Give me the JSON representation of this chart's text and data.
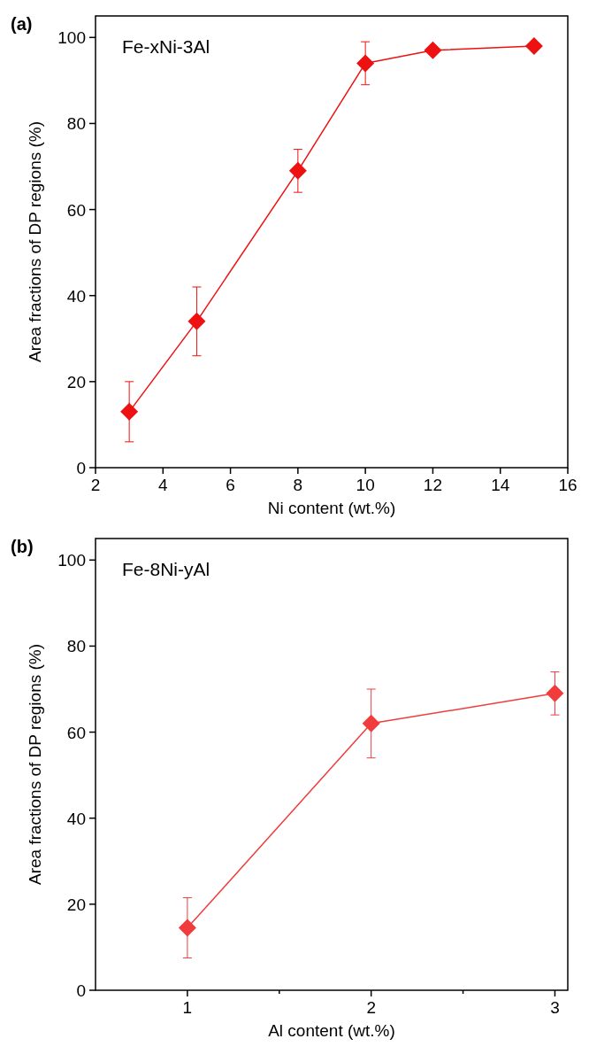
{
  "chart_data": [
    {
      "type": "line",
      "xlabel": "Ni content (wt.%)",
      "ylabel": "Area fractions of DP regions (%)",
      "annotations": [
        "(a)",
        "Fe-xNi-3Al"
      ],
      "x": [
        3,
        5,
        8,
        10,
        12,
        15
      ],
      "series": [
        {
          "color": "#ee1111",
          "values": [
            13,
            34,
            69,
            94,
            97,
            98
          ],
          "errors": [
            [
              6,
              20
            ],
            [
              26,
              42
            ],
            [
              64,
              74
            ],
            [
              89,
              99
            ],
            null,
            null
          ]
        }
      ],
      "xlim": [
        2,
        16
      ],
      "xticks": [
        2,
        4,
        6,
        8,
        10,
        12,
        14,
        16
      ],
      "ylim": [
        0,
        105
      ],
      "yticks": [
        0,
        20,
        40,
        60,
        80,
        100
      ],
      "grid": false,
      "marker": "diamond",
      "line_style": "solid"
    },
    {
      "type": "line",
      "xlabel": "Al content (wt.%)",
      "ylabel": "Area fractions of DP regions (%)",
      "annotations": [
        "(b)",
        "Fe-8Ni-yAl"
      ],
      "x": [
        1,
        2,
        3
      ],
      "series": [
        {
          "color": "#f03c3c",
          "values": [
            14.5,
            62,
            69
          ],
          "errors": [
            [
              7.5,
              21.5
            ],
            [
              54,
              70
            ],
            [
              64,
              74
            ]
          ]
        }
      ],
      "xlim": [
        0.5,
        3.07
      ],
      "xticks": [
        1,
        {
          "value": 1.5,
          "label": null
        },
        2,
        {
          "value": 2.5,
          "label": null
        },
        3
      ],
      "ylim": [
        0,
        105
      ],
      "yticks": [
        0,
        20,
        40,
        60,
        80,
        100
      ],
      "grid": false,
      "marker": "diamond",
      "line_style": "solid"
    }
  ]
}
